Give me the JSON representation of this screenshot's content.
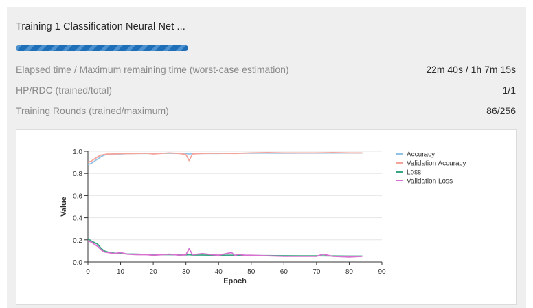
{
  "job": {
    "title": "Training 1 Classification Neural Net ...",
    "progress_fraction": 0.336
  },
  "stats": [
    {
      "label": "Elapsed time / Maximum remaining time (worst-case estimation)",
      "value": "22m 40s / 1h 7m 15s"
    },
    {
      "label": "HP/RDC (trained/total)",
      "value": "1/1"
    },
    {
      "label": "Training Rounds (trained/maximum)",
      "value": "86/256"
    }
  ],
  "chart_data": {
    "type": "line",
    "xlabel": "Epoch",
    "ylabel": "Value",
    "xlim": [
      0,
      90
    ],
    "ylim": [
      0,
      1.0
    ],
    "xticks": [
      "0",
      "10",
      "20",
      "30",
      "40",
      "50",
      "60",
      "70",
      "80",
      "90"
    ],
    "yticks": [
      "0.0",
      "0.2",
      "0.4",
      "0.6",
      "0.8",
      "1.0"
    ],
    "legend_position": "right",
    "series": [
      {
        "name": "Accuracy",
        "color": "#91c3e6",
        "x": [
          0,
          1,
          2,
          3,
          4,
          5,
          6,
          8,
          10,
          12,
          15,
          18,
          20,
          25,
          28,
          30,
          31,
          32,
          35,
          40,
          45,
          50,
          55,
          60,
          65,
          70,
          75,
          80,
          84
        ],
        "y": [
          0.88,
          0.89,
          0.91,
          0.93,
          0.95,
          0.965,
          0.97,
          0.975,
          0.975,
          0.978,
          0.98,
          0.98,
          0.98,
          0.982,
          0.98,
          0.98,
          0.975,
          0.978,
          0.98,
          0.98,
          0.982,
          0.982,
          0.983,
          0.982,
          0.983,
          0.983,
          0.984,
          0.984,
          0.984
        ]
      },
      {
        "name": "Validation Accuracy",
        "color": "#f4a49a",
        "x": [
          0,
          1,
          2,
          3,
          4,
          5,
          6,
          8,
          10,
          12,
          15,
          18,
          20,
          25,
          28,
          30,
          31,
          32,
          35,
          40,
          45,
          50,
          55,
          60,
          65,
          70,
          75,
          80,
          84
        ],
        "y": [
          0.9,
          0.91,
          0.93,
          0.95,
          0.965,
          0.97,
          0.975,
          0.975,
          0.978,
          0.978,
          0.98,
          0.982,
          0.975,
          0.985,
          0.98,
          0.97,
          0.915,
          0.975,
          0.98,
          0.982,
          0.98,
          0.985,
          0.988,
          0.985,
          0.985,
          0.985,
          0.988,
          0.985,
          0.985
        ]
      },
      {
        "name": "Loss",
        "color": "#3aa584",
        "x": [
          0,
          1,
          2,
          3,
          4,
          5,
          6,
          8,
          10,
          12,
          15,
          18,
          20,
          25,
          28,
          30,
          31,
          32,
          35,
          40,
          45,
          50,
          55,
          60,
          65,
          70,
          75,
          80,
          84
        ],
        "y": [
          0.21,
          0.19,
          0.175,
          0.16,
          0.125,
          0.1,
          0.09,
          0.08,
          0.075,
          0.072,
          0.07,
          0.068,
          0.066,
          0.065,
          0.064,
          0.063,
          0.065,
          0.062,
          0.062,
          0.06,
          0.06,
          0.058,
          0.057,
          0.056,
          0.055,
          0.055,
          0.054,
          0.053,
          0.053
        ]
      },
      {
        "name": "Validation Loss",
        "color": "#d870cf",
        "x": [
          0,
          1,
          2,
          3,
          4,
          5,
          6,
          8,
          10,
          12,
          15,
          18,
          20,
          25,
          28,
          30,
          31,
          32,
          35,
          40,
          44,
          45,
          46,
          48,
          50,
          55,
          60,
          65,
          70,
          72,
          75,
          80,
          84
        ],
        "y": [
          0.19,
          0.18,
          0.16,
          0.14,
          0.11,
          0.09,
          0.085,
          0.075,
          0.085,
          0.07,
          0.065,
          0.065,
          0.06,
          0.07,
          0.06,
          0.065,
          0.12,
          0.065,
          0.075,
          0.06,
          0.085,
          0.055,
          0.07,
          0.06,
          0.06,
          0.055,
          0.05,
          0.05,
          0.05,
          0.07,
          0.05,
          0.045,
          0.05
        ]
      }
    ]
  }
}
